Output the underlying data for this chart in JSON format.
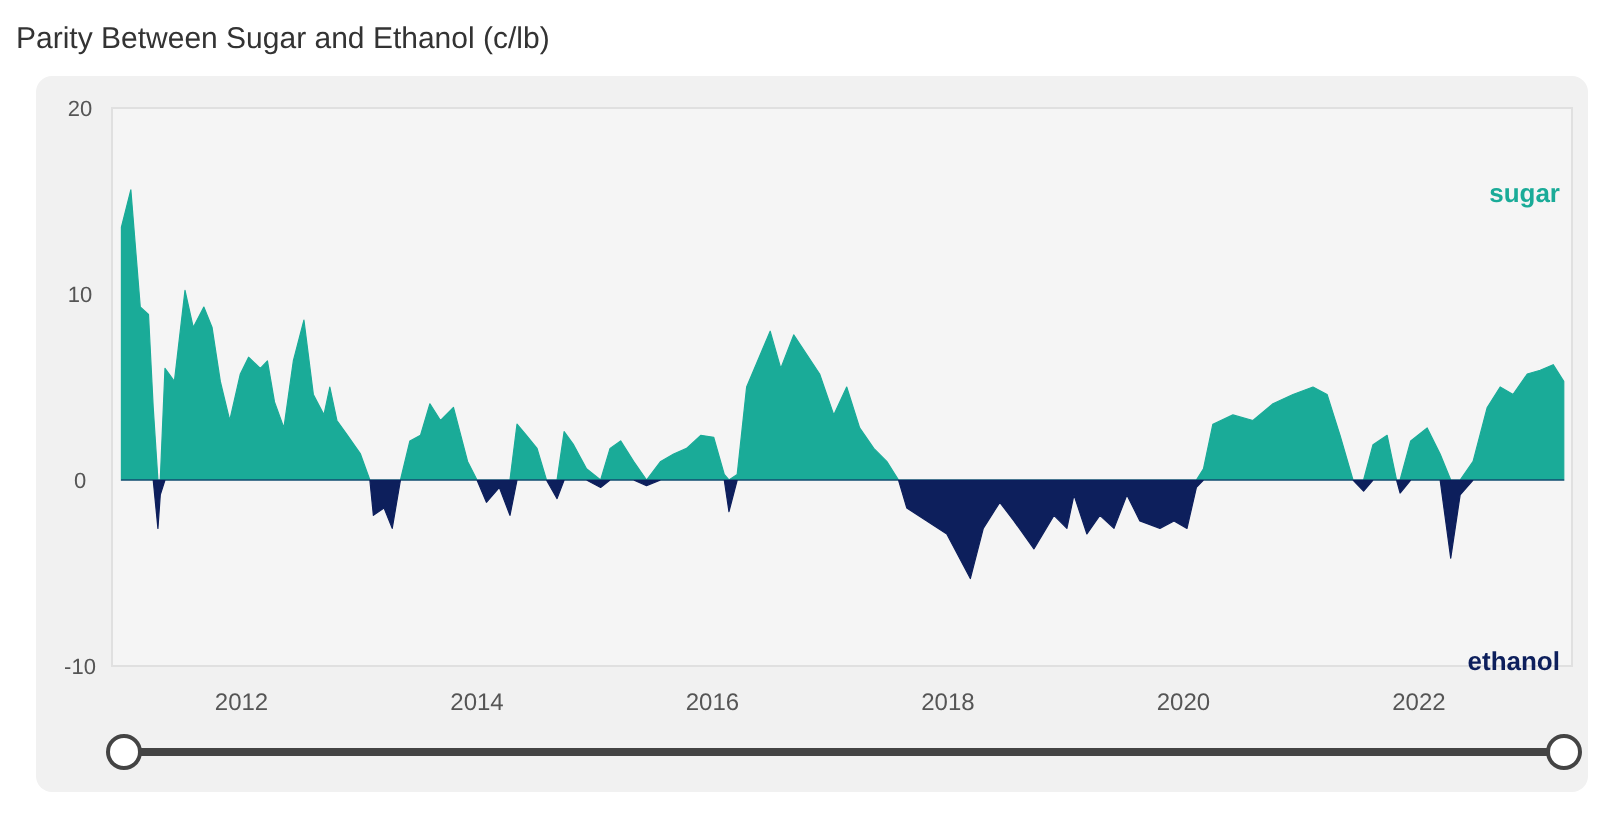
{
  "chart_data": {
    "type": "area",
    "title": "Parity Between Sugar and Ethanol (c/lb)",
    "x": [
      2010.98,
      2011.06,
      2011.14,
      2011.21,
      2011.25,
      2011.29,
      2011.31,
      2011.35,
      2011.43,
      2011.52,
      2011.59,
      2011.68,
      2011.75,
      2011.82,
      2011.9,
      2011.99,
      2012.06,
      2012.16,
      2012.22,
      2012.28,
      2012.36,
      2012.44,
      2012.53,
      2012.61,
      2012.7,
      2012.75,
      2012.81,
      2012.9,
      2013.01,
      2013.09,
      2013.12,
      2013.21,
      2013.28,
      2013.35,
      2013.43,
      2013.52,
      2013.6,
      2013.69,
      2013.8,
      2013.92,
      2014.0,
      2014.08,
      2014.19,
      2014.28,
      2014.34,
      2014.42,
      2014.51,
      2014.59,
      2014.68,
      2014.74,
      2014.82,
      2014.93,
      2015.05,
      2015.13,
      2015.22,
      2015.33,
      2015.44,
      2015.56,
      2015.67,
      2015.78,
      2015.9,
      2016.01,
      2016.1,
      2016.14,
      2016.21,
      2016.29,
      2016.41,
      2016.49,
      2016.58,
      2016.69,
      2016.91,
      2017.03,
      2017.14,
      2017.25,
      2017.37,
      2017.48,
      2017.58,
      2017.65,
      2017.82,
      2017.99,
      2018.19,
      2018.3,
      2018.44,
      2018.56,
      2018.73,
      2018.9,
      2019.01,
      2019.07,
      2019.18,
      2019.29,
      2019.41,
      2019.52,
      2019.63,
      2019.8,
      2019.92,
      2020.03,
      2020.11,
      2020.17,
      2020.25,
      2020.42,
      2020.59,
      2020.76,
      2020.93,
      2021.1,
      2021.22,
      2021.33,
      2021.44,
      2021.53,
      2021.61,
      2021.73,
      2021.81,
      2021.84,
      2021.93,
      2022.07,
      2022.18,
      2022.27,
      2022.35,
      2022.46,
      2022.58,
      2022.69,
      2022.8,
      2022.92,
      2023.03,
      2023.14,
      2023.23
    ],
    "series": [
      {
        "name": "sugar",
        "color": "#1aab98",
        "values": [
          13.6,
          15.6,
          9.3,
          8.9,
          3.9,
          0,
          0,
          6.0,
          5.3,
          10.2,
          8.2,
          9.3,
          8.2,
          5.3,
          3.2,
          5.7,
          6.6,
          6.0,
          6.4,
          4.2,
          2.8,
          6.4,
          8.6,
          4.6,
          3.5,
          5.0,
          3.2,
          2.4,
          1.4,
          0,
          0,
          0,
          0,
          0,
          2.1,
          2.4,
          4.1,
          3.2,
          3.9,
          1.0,
          0,
          0,
          0,
          0,
          3.0,
          2.4,
          1.7,
          0,
          0,
          2.6,
          1.9,
          0.6,
          0,
          1.7,
          2.1,
          1.0,
          0,
          1.0,
          1.4,
          1.7,
          2.4,
          2.3,
          0.3,
          0,
          0.3,
          5.0,
          6.8,
          8.0,
          6.0,
          7.8,
          5.7,
          3.5,
          5.0,
          2.8,
          1.7,
          1.0,
          0,
          0,
          0,
          0,
          0,
          0,
          0,
          0,
          0,
          0,
          0,
          0,
          0,
          0,
          0,
          0,
          0,
          0,
          0,
          0,
          0,
          0.6,
          3.0,
          3.5,
          3.2,
          4.1,
          4.6,
          5.0,
          4.6,
          2.4,
          0,
          0,
          1.9,
          2.4,
          0,
          0,
          2.1,
          2.8,
          1.4,
          0,
          0,
          1.0,
          3.9,
          5.0,
          4.6,
          5.7,
          5.9,
          6.2,
          5.3
        ]
      },
      {
        "name": "ethanol",
        "color": "#0d1f5c",
        "values": [
          0,
          0,
          0,
          0,
          0,
          -2.6,
          -0.8,
          0,
          0,
          0,
          0,
          0,
          0,
          0,
          0,
          0,
          0,
          0,
          0,
          0,
          0,
          0,
          0,
          0,
          0,
          0,
          0,
          0,
          0,
          0,
          -1.9,
          -1.5,
          -2.6,
          0,
          0,
          0,
          0,
          0,
          0,
          0,
          0,
          -1.2,
          -0.4,
          -1.9,
          0,
          0,
          0,
          0,
          -1.0,
          0,
          0,
          0,
          -0.4,
          0,
          0,
          0,
          -0.3,
          0,
          0,
          0,
          0,
          0,
          0,
          -1.7,
          0,
          0,
          0,
          0,
          0,
          0,
          0,
          0,
          0,
          0,
          0,
          0,
          0,
          -1.5,
          -2.2,
          -2.9,
          -5.3,
          -2.6,
          -1.2,
          -2.2,
          -3.7,
          -1.9,
          -2.6,
          -0.8,
          -2.9,
          -1.9,
          -2.6,
          -0.8,
          -2.2,
          -2.6,
          -2.2,
          -2.6,
          -0.4,
          0,
          0,
          0,
          0,
          0,
          0,
          0,
          0,
          0,
          0,
          -0.6,
          0,
          0,
          0,
          -0.7,
          0,
          0,
          0,
          -4.2,
          -0.8,
          0,
          0,
          0,
          0,
          0,
          0,
          0,
          0
        ]
      }
    ],
    "xlim": [
      2010.9,
      2023.3
    ],
    "xticks": [
      2012,
      2014,
      2016,
      2018,
      2020,
      2022
    ],
    "ylim": [
      -10,
      20
    ],
    "yticks": [
      -10,
      0,
      10,
      20
    ],
    "grid": false,
    "legend": false
  }
}
